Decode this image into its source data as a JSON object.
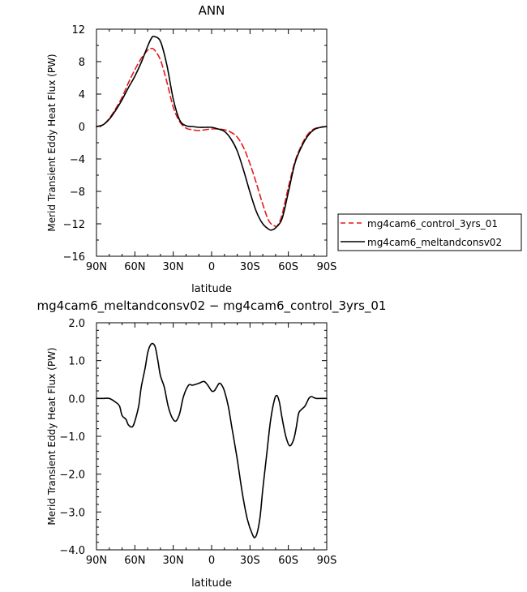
{
  "chart_data": [
    {
      "type": "line",
      "title": "ANN",
      "xlabel": "latitude",
      "ylabel": "Merid Transient Eddy Heat Flux (PW)",
      "x_direction": "north-to-south",
      "xlim": [
        90,
        -90
      ],
      "ylim": [
        -16,
        12
      ],
      "xticks": [
        90,
        60,
        30,
        0,
        -30,
        -60,
        -90
      ],
      "xtick_labels": [
        "90N",
        "60N",
        "30N",
        "0",
        "30S",
        "60S",
        "90S"
      ],
      "yticks": [
        -16,
        -12,
        -8,
        -4,
        0,
        4,
        8,
        12
      ],
      "ytick_labels": [
        "−16",
        "−12",
        "−8",
        "−4",
        "0",
        "4",
        "8",
        "12"
      ],
      "legend_position": "right",
      "series": [
        {
          "name": "mg4cam6_control_3yrs_01",
          "color": "#e41a1c",
          "dash": "dashed",
          "x": [
            90,
            85,
            80,
            75,
            70,
            65,
            60,
            55,
            50,
            48,
            45,
            40,
            35,
            30,
            25,
            20,
            15,
            10,
            5,
            0,
            -5,
            -10,
            -15,
            -20,
            -25,
            -30,
            -35,
            -40,
            -45,
            -50,
            -52,
            -55,
            -60,
            -65,
            -70,
            -75,
            -80,
            -85,
            -90
          ],
          "y": [
            0.0,
            0.2,
            1.0,
            2.2,
            3.6,
            5.4,
            7.0,
            8.4,
            9.4,
            9.6,
            9.5,
            8.2,
            5.5,
            2.4,
            0.6,
            -0.2,
            -0.4,
            -0.5,
            -0.4,
            -0.3,
            -0.3,
            -0.4,
            -0.7,
            -1.3,
            -2.6,
            -4.6,
            -7.0,
            -9.6,
            -11.7,
            -12.3,
            -12.1,
            -10.9,
            -7.5,
            -4.4,
            -2.4,
            -1.0,
            -0.3,
            -0.1,
            0.0
          ]
        },
        {
          "name": "mg4cam6_meltandconsv02",
          "color": "#000000",
          "dash": "solid",
          "x": [
            90,
            85,
            80,
            75,
            70,
            65,
            60,
            55,
            50,
            47,
            45,
            40,
            35,
            30,
            25,
            20,
            15,
            10,
            5,
            0,
            -5,
            -10,
            -15,
            -20,
            -25,
            -30,
            -35,
            -40,
            -45,
            -47,
            -50,
            -55,
            -60,
            -65,
            -70,
            -75,
            -80,
            -85,
            -90
          ],
          "y": [
            0.0,
            0.2,
            0.9,
            2.0,
            3.3,
            4.8,
            6.2,
            7.9,
            9.9,
            10.9,
            11.1,
            10.5,
            7.6,
            3.4,
            0.8,
            0.1,
            0.0,
            -0.1,
            -0.1,
            -0.1,
            -0.3,
            -0.6,
            -1.5,
            -3.0,
            -5.4,
            -8.1,
            -10.5,
            -12.0,
            -12.7,
            -12.75,
            -12.5,
            -11.4,
            -8.1,
            -4.6,
            -2.6,
            -1.2,
            -0.4,
            -0.1,
            0.0
          ]
        }
      ]
    },
    {
      "type": "line",
      "title": "mg4cam6_meltandconsv02 − mg4cam6_control_3yrs_01",
      "xlabel": "latitude",
      "ylabel": "Merid Transient Eddy Heat Flux (PW)",
      "x_direction": "north-to-south",
      "xlim": [
        90,
        -90
      ],
      "ylim": [
        -4,
        2
      ],
      "xticks": [
        90,
        60,
        30,
        0,
        -30,
        -60,
        -90
      ],
      "xtick_labels": [
        "90N",
        "60N",
        "30N",
        "0",
        "30S",
        "60S",
        "90S"
      ],
      "yticks": [
        -4,
        -3,
        -2,
        -1,
        0,
        1,
        2
      ],
      "ytick_labels": [
        "−4.0",
        "−3.0",
        "−2.0",
        "−1.0",
        "0.0",
        "1.0",
        "2.0"
      ],
      "series": [
        {
          "color": "#000000",
          "dash": "solid",
          "x": [
            90,
            85,
            80,
            75,
            72,
            70,
            67,
            65,
            62,
            60,
            57,
            55,
            52,
            50,
            48,
            46,
            44,
            42,
            40,
            37,
            34,
            31,
            28,
            25,
            22,
            18,
            15,
            10,
            6,
            3,
            0,
            -2,
            -4,
            -6,
            -8,
            -10,
            -13,
            -16,
            -20,
            -24,
            -28,
            -32,
            -34,
            -36,
            -38,
            -40,
            -43,
            -46,
            -49,
            -51,
            -53,
            -55,
            -58,
            -61,
            -64,
            -66,
            -68,
            -70,
            -73,
            -76,
            -78,
            -80,
            -82,
            -85,
            -88,
            -90
          ],
          "y": [
            0.0,
            0.0,
            0.0,
            -0.1,
            -0.2,
            -0.45,
            -0.55,
            -0.7,
            -0.75,
            -0.6,
            -0.2,
            0.3,
            0.8,
            1.2,
            1.4,
            1.45,
            1.35,
            1.0,
            0.6,
            0.3,
            -0.2,
            -0.5,
            -0.6,
            -0.4,
            0.05,
            0.35,
            0.35,
            0.4,
            0.45,
            0.35,
            0.2,
            0.2,
            0.3,
            0.4,
            0.35,
            0.2,
            -0.2,
            -0.8,
            -1.6,
            -2.5,
            -3.2,
            -3.6,
            -3.67,
            -3.5,
            -3.1,
            -2.4,
            -1.5,
            -0.6,
            -0.05,
            0.08,
            -0.1,
            -0.5,
            -1.0,
            -1.25,
            -1.1,
            -0.8,
            -0.4,
            -0.3,
            -0.2,
            0.0,
            0.05,
            0.02,
            0.0,
            0.0,
            0.0,
            0.0
          ]
        }
      ]
    }
  ]
}
